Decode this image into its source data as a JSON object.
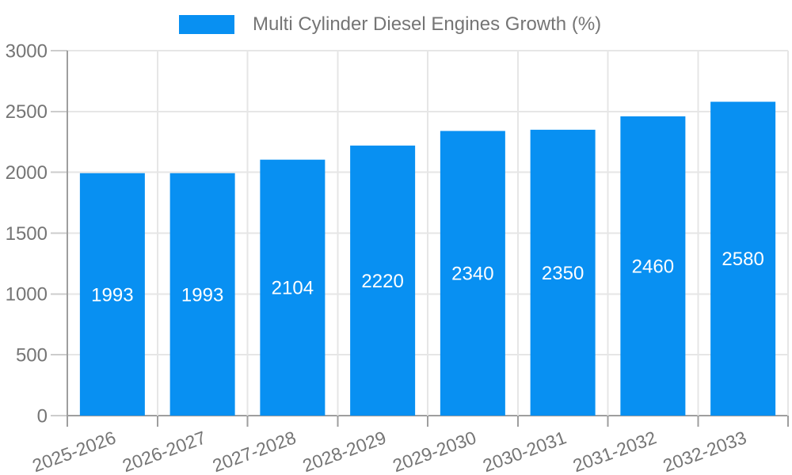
{
  "legend": {
    "position": "top",
    "series_label": "Multi Cylinder Diesel Engines Growth (%)"
  },
  "colors": {
    "bar": "#0890f2",
    "grid": "#e6e6e6",
    "axis": "#9e9e9e",
    "baseline": "#9e9e9e",
    "y_tick": "#cccccc",
    "tick_label": "#757575",
    "bar_value_label": "#ffffff",
    "background": "#ffffff"
  },
  "chart_data": {
    "type": "bar",
    "title": "",
    "xlabel": "",
    "ylabel": "",
    "categories": [
      "2025-2026",
      "2026-2027",
      "2027-2028",
      "2028-2029",
      "2029-2030",
      "2030-2031",
      "2031-2032",
      "2032-2033"
    ],
    "series": [
      {
        "name": "Multi Cylinder Diesel Engines Growth (%)",
        "values": [
          1993,
          1993,
          2104,
          2220,
          2340,
          2350,
          2460,
          2580
        ]
      }
    ],
    "value_labels": [
      "1993",
      "1993",
      "2104",
      "2220",
      "2340",
      "2350",
      "2460",
      "2580"
    ],
    "value_label_position": "inside-center",
    "ylim": [
      0,
      3000
    ],
    "yticks": [
      0,
      500,
      1000,
      1500,
      2000,
      2500,
      3000
    ],
    "ytick_labels": [
      "0",
      "500",
      "1000",
      "1500",
      "2000",
      "2500",
      "3000"
    ],
    "grid": "both",
    "legend_position": "top",
    "x_tick_rotation_deg": -20
  }
}
